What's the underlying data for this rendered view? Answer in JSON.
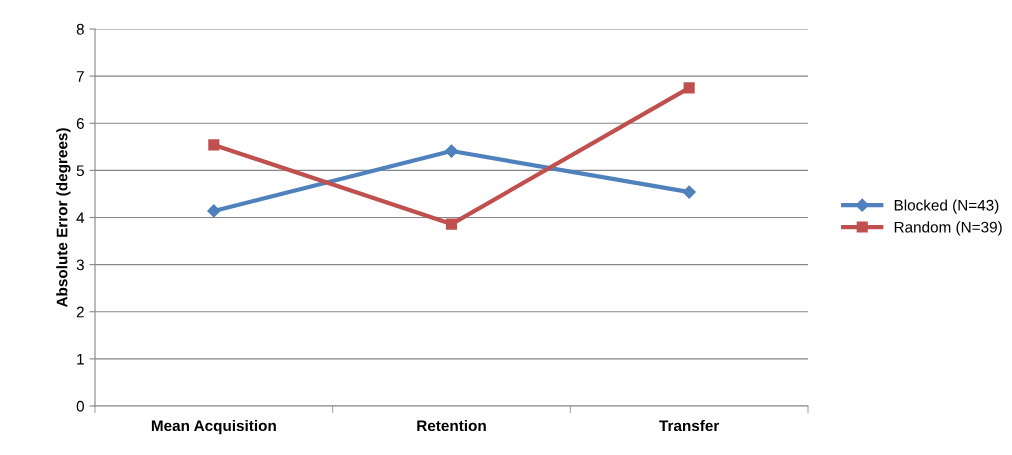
{
  "chart_data": {
    "type": "line",
    "ylabel": "Absolute Error (degrees)",
    "categories": [
      "Mean Acquisition",
      "Retention",
      "Transfer"
    ],
    "series": [
      {
        "name": "Blocked (N=43)",
        "color": "#4f81bd",
        "marker": "diamond",
        "values": [
          4.14,
          5.41,
          4.54
        ]
      },
      {
        "name": "Random (N=39)",
        "color": "#c0504d",
        "marker": "square",
        "values": [
          5.54,
          3.86,
          6.75
        ]
      }
    ],
    "ylim": [
      0,
      8
    ],
    "yticks": [
      0,
      1,
      2,
      3,
      4,
      5,
      6,
      7,
      8
    ],
    "grid": "y",
    "legend": "right",
    "line_style": "solid"
  }
}
